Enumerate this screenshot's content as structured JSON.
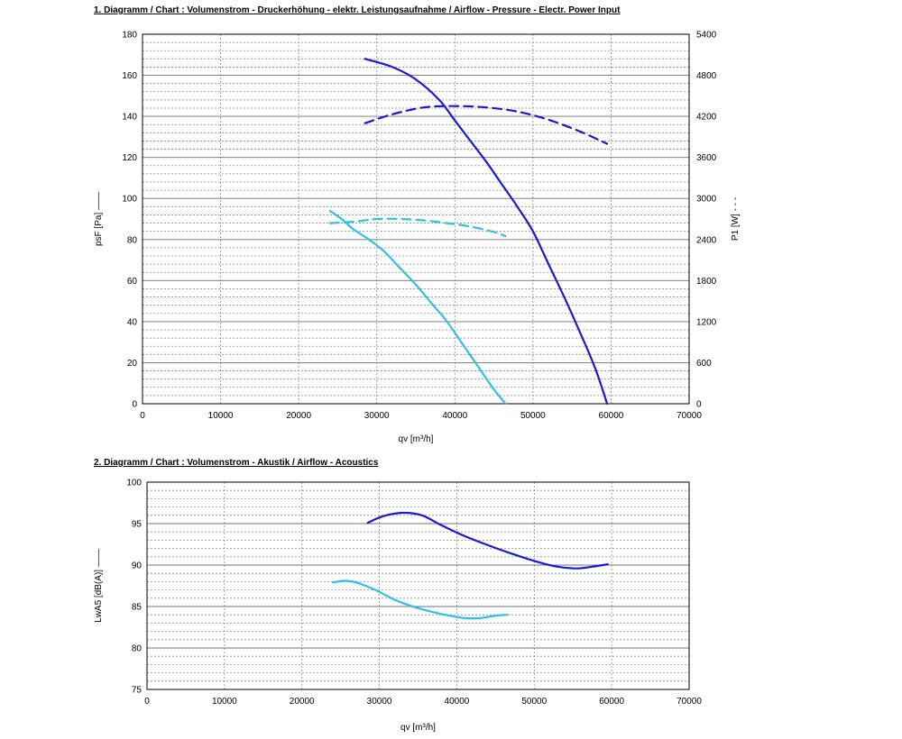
{
  "chart_data": [
    {
      "type": "line",
      "title": "1. Diagramm / Chart :   Volumenstrom - Druckerhöhung - elektr. Leistungsaufnahme / Airflow - Pressure - Electr. Power Input",
      "xlabel": "qv [m³/h]",
      "ylabel": "psF [Pa]",
      "ylabel_marker": "——",
      "y2label": "P1 [W]",
      "y2label_marker": "- - -",
      "xlim": [
        0,
        70000
      ],
      "ylim": [
        0,
        180
      ],
      "y2lim": [
        0,
        5400
      ],
      "xticks": [
        "0",
        "10000",
        "20000",
        "30000",
        "40000",
        "50000",
        "60000",
        "70000"
      ],
      "yticks": [
        "0",
        "20",
        "40",
        "60",
        "80",
        "100",
        "120",
        "140",
        "160",
        "180"
      ],
      "y2ticks": [
        "0",
        "600",
        "1200",
        "1800",
        "2400",
        "3000",
        "3600",
        "4200",
        "4800",
        "5400"
      ],
      "grid": true,
      "colors": {
        "dark": "#1a1ad6",
        "light": "#2ec0ea",
        "grid": "#8c8c8c"
      },
      "series": [
        {
          "axis": "y",
          "style": "solid",
          "color": "dark",
          "x": [
            28500,
            32000,
            35000,
            38000,
            40000,
            42000,
            44000,
            46000,
            48000,
            50000,
            52000,
            54000,
            56000,
            58000,
            59500
          ],
          "y": [
            168,
            164,
            158,
            148,
            138,
            128,
            118,
            107,
            96,
            84,
            68,
            52,
            35,
            17,
            0
          ]
        },
        {
          "axis": "y2",
          "style": "dashed",
          "color": "dark",
          "x": [
            28500,
            32000,
            36000,
            40000,
            44000,
            48000,
            52000,
            56000,
            59500
          ],
          "y": [
            4100,
            4230,
            4330,
            4350,
            4330,
            4270,
            4150,
            3980,
            3800
          ]
        },
        {
          "axis": "y",
          "style": "solid",
          "color": "light",
          "x": [
            24000,
            25500,
            27000,
            29000,
            31000,
            33000,
            35000,
            37000,
            39000,
            41000,
            43000,
            45000,
            46500
          ],
          "y": [
            94,
            90,
            85,
            80,
            74,
            66,
            58,
            49,
            40,
            29,
            18,
            7,
            0
          ]
        },
        {
          "axis": "y2",
          "style": "dashed",
          "color": "light",
          "x": [
            24000,
            27000,
            30000,
            33000,
            36000,
            39000,
            42000,
            45000,
            46500
          ],
          "y": [
            2640,
            2660,
            2700,
            2700,
            2680,
            2640,
            2590,
            2510,
            2450
          ]
        }
      ]
    },
    {
      "type": "line",
      "title": "2. Diagramm / Chart :  Volumenstrom - Akustik / Airflow - Acoustics",
      "xlabel": "qv [m³/h]",
      "ylabel": "LwA5 [dB(A)]",
      "ylabel_marker": "——",
      "xlim": [
        0,
        70000
      ],
      "ylim": [
        75,
        100
      ],
      "xticks": [
        "0",
        "10000",
        "20000",
        "30000",
        "40000",
        "50000",
        "60000",
        "70000"
      ],
      "yticks": [
        "75",
        "80",
        "85",
        "90",
        "95",
        "100"
      ],
      "grid": true,
      "colors": {
        "dark": "#1a1ad6",
        "light": "#2ec0ea",
        "grid": "#8c8c8c"
      },
      "series": [
        {
          "style": "solid",
          "color": "dark",
          "x": [
            28500,
            30500,
            33000,
            35500,
            38000,
            41000,
            44000,
            47000,
            50000,
            53000,
            55500,
            57500,
            59500
          ],
          "y": [
            95.1,
            95.9,
            96.3,
            96.0,
            94.8,
            93.5,
            92.4,
            91.4,
            90.5,
            89.8,
            89.6,
            89.8,
            90.1
          ]
        },
        {
          "style": "solid",
          "color": "light",
          "x": [
            24000,
            25500,
            27000,
            29500,
            32000,
            35000,
            38000,
            41000,
            43000,
            45000,
            46500
          ],
          "y": [
            87.9,
            88.1,
            87.9,
            87.0,
            85.8,
            84.8,
            84.1,
            83.6,
            83.6,
            83.9,
            84.0
          ]
        }
      ]
    }
  ]
}
